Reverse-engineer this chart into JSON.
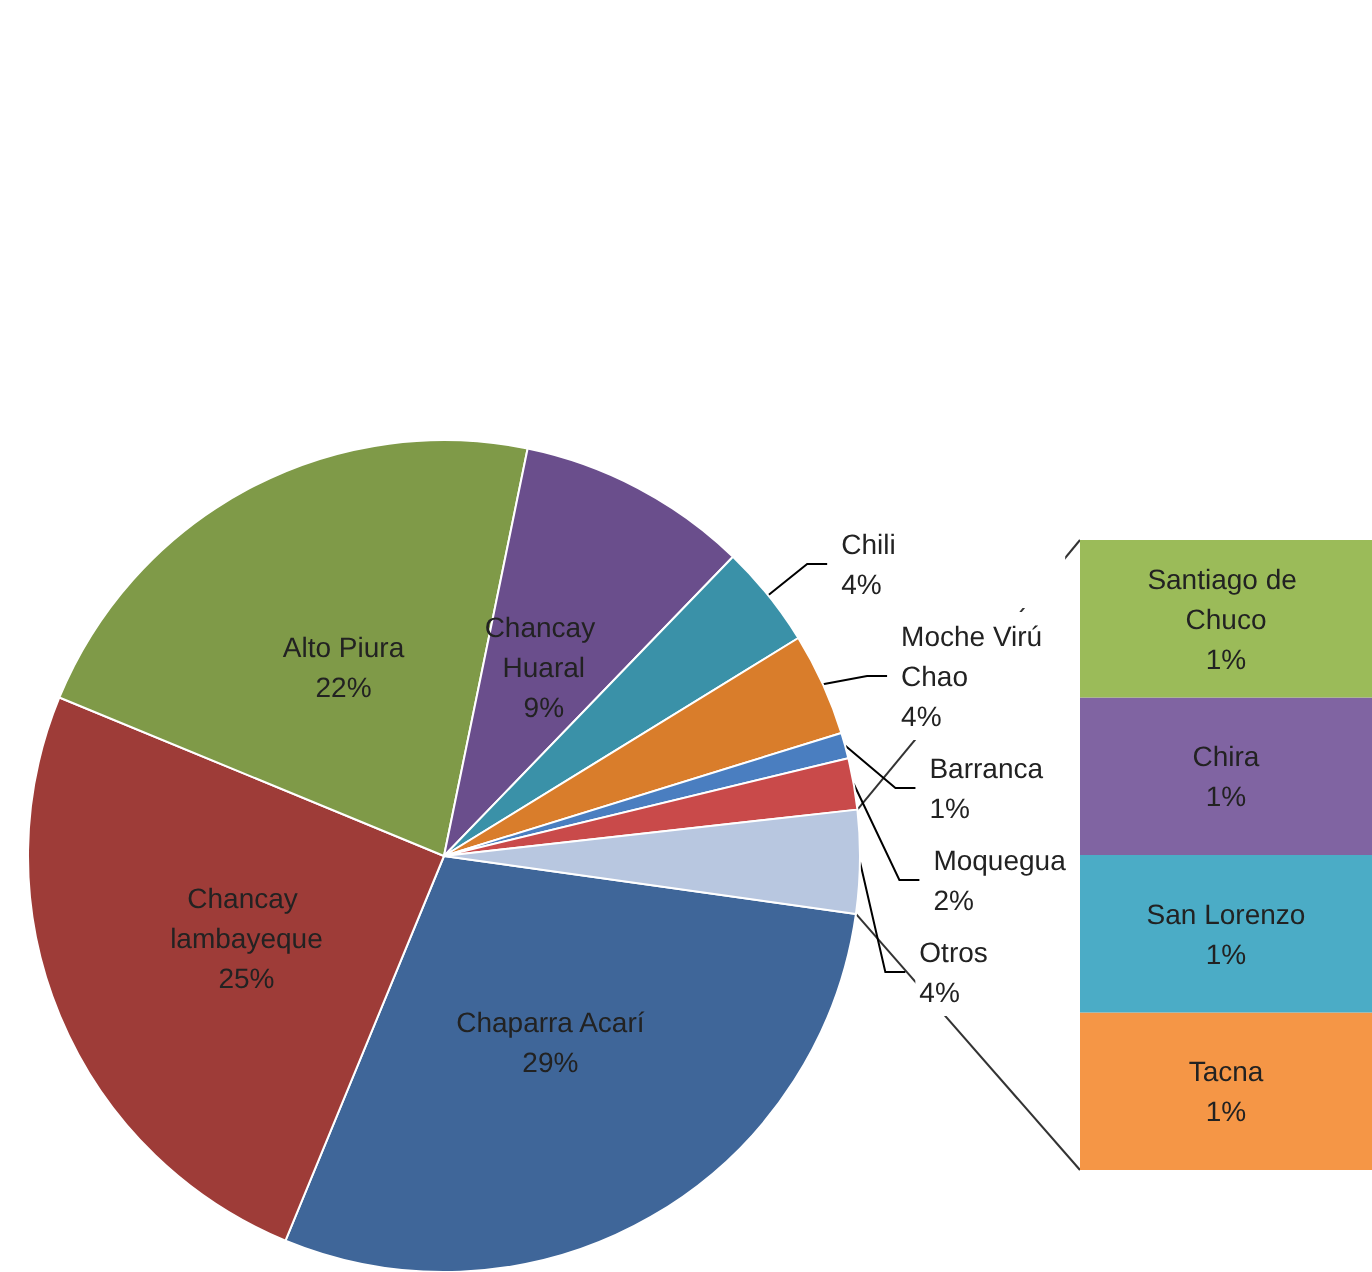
{
  "chart_data": [
    {
      "type": "pie",
      "categories": [
        "Chaparra Acarí",
        "Chancay lambayeque",
        "Alto Piura",
        "Chancay Huaral",
        "Chili",
        "Moche Virú Chao",
        "Barranca",
        "Moquegua",
        "Otros"
      ],
      "values": [
        29,
        25,
        22,
        9,
        4,
        4,
        1,
        2,
        4
      ],
      "value_labels": [
        "29%",
        "25%",
        "22%",
        "9%",
        "4%",
        "4%",
        "1%",
        "2%",
        "4%"
      ],
      "colors": [
        "#3f6699",
        "#9e3c38",
        "#7f9a48",
        "#6a4e8c",
        "#3a91a8",
        "#d97d2b",
        "#4a7ec0",
        "#c94a4a",
        "#b8c7e0"
      ]
    },
    {
      "type": "bar",
      "stacked": true,
      "categories": [
        null
      ],
      "series": [
        {
          "name": "Tacna",
          "color": "#f59646",
          "values": [
            1
          ],
          "value_labels": [
            "1%"
          ]
        },
        {
          "name": "San Lorenzo",
          "color": "#4bacc6",
          "values": [
            1
          ],
          "value_labels": [
            "1%"
          ]
        },
        {
          "name": "Chira",
          "color": "#8064a2",
          "values": [
            1
          ],
          "value_labels": [
            "1%"
          ]
        },
        {
          "name": "Santiago de Chuco",
          "color": "#9bbb59",
          "values": [
            1
          ],
          "value_labels": [
            "1%"
          ]
        }
      ]
    }
  ]
}
